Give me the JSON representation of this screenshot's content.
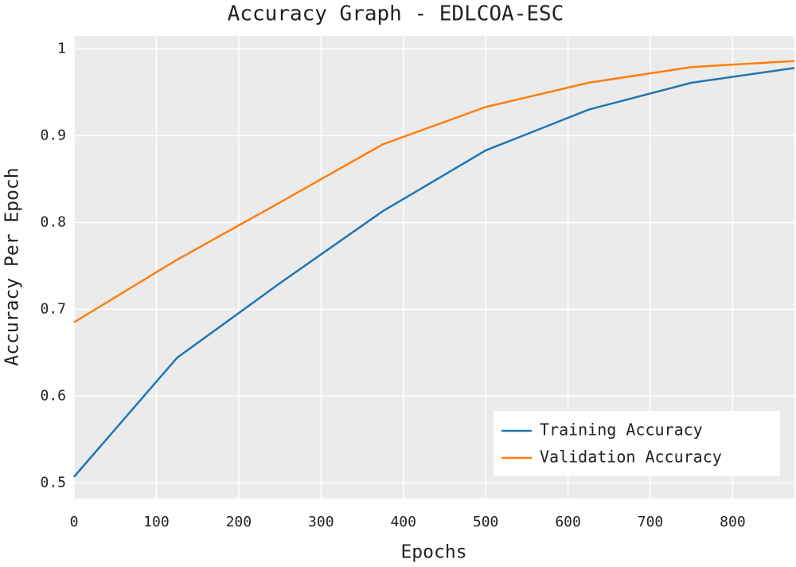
{
  "chart_data": {
    "type": "line",
    "title": "Accuracy Graph - EDLCOA-ESC",
    "x_label": "Epochs",
    "y_label": "Accuracy Per Epoch",
    "x": [
      0,
      125,
      250,
      375,
      500,
      625,
      750,
      875
    ],
    "series": [
      {
        "name": "Training Accuracy",
        "color": "#1f77b4",
        "values": [
          0.507,
          0.644,
          0.73,
          0.813,
          0.883,
          0.93,
          0.961,
          0.978
        ]
      },
      {
        "name": "Validation Accuracy",
        "color": "#ff7f0e",
        "values": [
          0.685,
          0.757,
          0.823,
          0.89,
          0.933,
          0.961,
          0.979,
          0.986
        ]
      }
    ],
    "xlim": [
      0,
      875
    ],
    "ylim": [
      0.482,
      1.015
    ],
    "xticks": [
      0,
      100,
      200,
      300,
      400,
      500,
      600,
      700,
      800
    ],
    "yticks": [
      0.5,
      0.6,
      0.7,
      0.8,
      0.9,
      1
    ],
    "grid": true,
    "legend": "lower right"
  }
}
